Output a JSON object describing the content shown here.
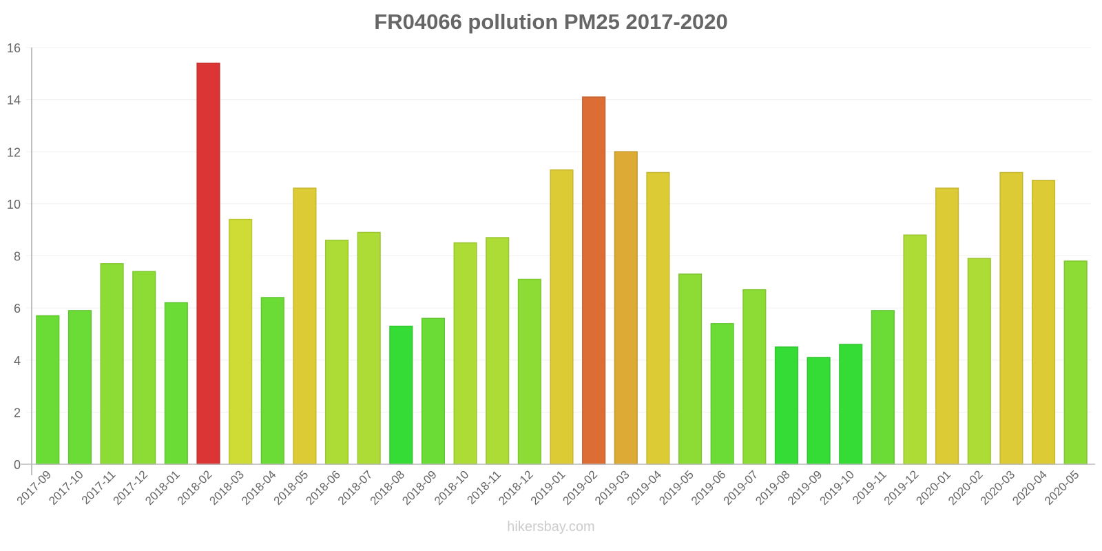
{
  "title": "FR04066 pollution PM25 2017-2020",
  "footer": "hikersbay.com",
  "chart_data": {
    "type": "bar",
    "title": "FR04066 pollution PM25 2017-2020",
    "xlabel": "",
    "ylabel": "",
    "ylim": [
      0,
      16
    ],
    "yticks": [
      0,
      2,
      4,
      6,
      8,
      10,
      12,
      14,
      16
    ],
    "grid": true,
    "legend": "none",
    "categories": [
      "2017-09",
      "2017-10",
      "2017-11",
      "2017-12",
      "2018-01",
      "2018-02",
      "2018-03",
      "2018-04",
      "2018-05",
      "2018-06",
      "2018-07",
      "2018-08",
      "2018-09",
      "2018-10",
      "2018-11",
      "2018-12",
      "2019-01",
      "2019-02",
      "2019-03",
      "2019-04",
      "2019-05",
      "2019-06",
      "2019-07",
      "2019-08",
      "2019-09",
      "2019-10",
      "2019-11",
      "2019-12",
      "2020-01",
      "2020-02",
      "2020-03",
      "2020-04",
      "2020-05"
    ],
    "values": [
      5.7,
      5.9,
      7.7,
      7.4,
      6.2,
      15.4,
      9.4,
      6.4,
      10.6,
      8.6,
      8.9,
      5.3,
      5.6,
      8.5,
      8.7,
      7.1,
      11.3,
      14.1,
      12.0,
      11.2,
      7.3,
      5.4,
      6.7,
      4.5,
      4.1,
      4.6,
      5.9,
      8.8,
      10.6,
      7.9,
      11.2,
      10.9,
      7.8
    ],
    "colors": [
      "#6bdc35",
      "#6bdc35",
      "#8cdc35",
      "#8cdc35",
      "#6bdc35",
      "#dc3535",
      "#cfdc35",
      "#6bdc35",
      "#dccb35",
      "#acdc35",
      "#acdc35",
      "#35dc35",
      "#6bdc35",
      "#acdc35",
      "#acdc35",
      "#8cdc35",
      "#dccb35",
      "#dc6d35",
      "#dcaa35",
      "#dccb35",
      "#8cdc35",
      "#6bdc35",
      "#8cdc35",
      "#35dc35",
      "#35dc35",
      "#35dc35",
      "#6bdc35",
      "#acdc35",
      "#dccb35",
      "#acdc35",
      "#dccb35",
      "#dccb35",
      "#8cdc35"
    ]
  }
}
